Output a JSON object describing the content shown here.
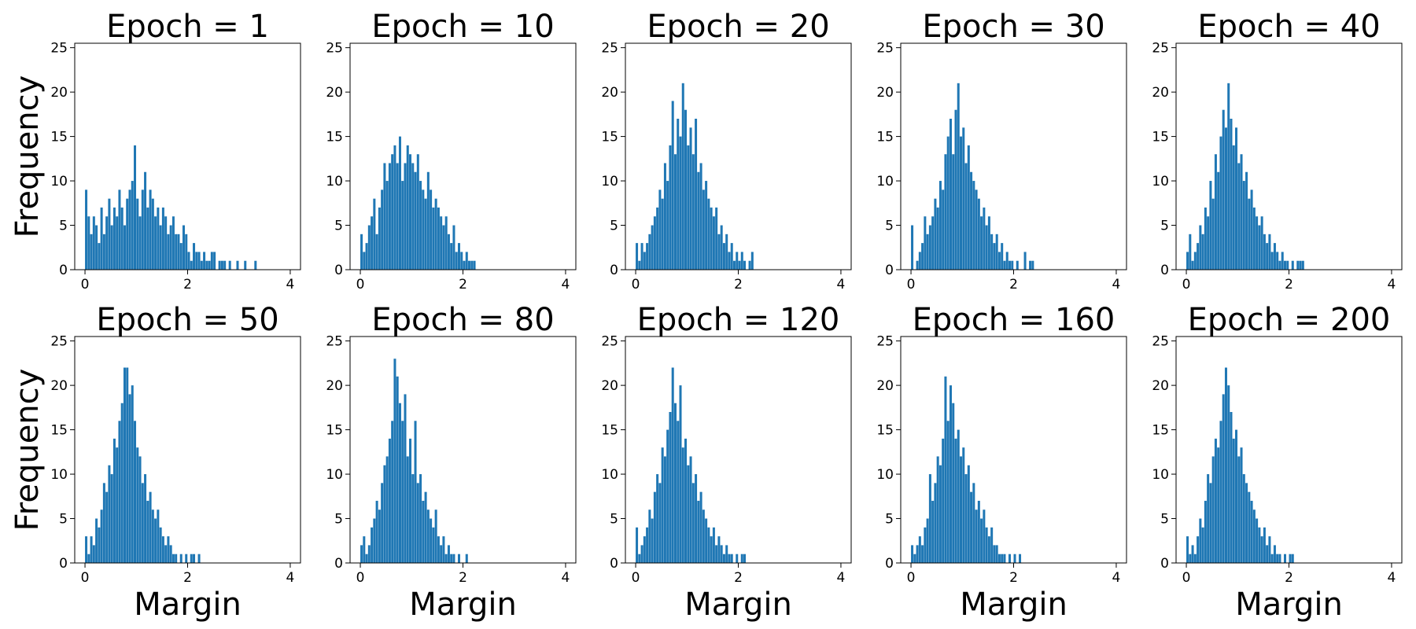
{
  "chart_data": [
    {
      "type": "bar",
      "title": "Epoch = 1",
      "xlabel": "",
      "ylabel": "Frequency",
      "xlim": [
        -0.2,
        4.2
      ],
      "ylim": [
        0,
        25.5
      ],
      "xticks": [
        0,
        2,
        4
      ],
      "yticks": [
        0,
        5,
        10,
        15,
        20,
        25
      ],
      "color": "#1f77b4",
      "x": [
        0.0,
        0.05,
        0.1,
        0.15,
        0.2,
        0.25,
        0.3,
        0.35,
        0.4,
        0.45,
        0.5,
        0.55,
        0.6,
        0.65,
        0.7,
        0.75,
        0.8,
        0.85,
        0.9,
        0.95,
        1.0,
        1.05,
        1.1,
        1.15,
        1.2,
        1.25,
        1.3,
        1.35,
        1.4,
        1.45,
        1.5,
        1.55,
        1.6,
        1.65,
        1.7,
        1.75,
        1.8,
        1.85,
        1.9,
        1.95,
        2.0,
        2.05,
        2.1,
        2.15,
        2.2,
        2.25,
        2.3,
        2.35,
        2.4,
        2.45,
        2.5,
        2.55,
        2.6,
        2.65,
        2.7,
        2.75,
        2.8,
        2.85,
        2.9,
        2.95,
        3.0,
        3.05,
        3.1,
        3.15,
        3.2,
        3.25,
        3.3,
        3.35
      ],
      "values": [
        9,
        6,
        4,
        6,
        5,
        3,
        7,
        4,
        6,
        8,
        5,
        7,
        6,
        9,
        7,
        5,
        8,
        9,
        10,
        14,
        8,
        6,
        9,
        11,
        7,
        9,
        8,
        6,
        7,
        5,
        7,
        6,
        4,
        5,
        6,
        4,
        4,
        3,
        5,
        4,
        2,
        1,
        3,
        2,
        2,
        1,
        2,
        1,
        1,
        2,
        2,
        0,
        1,
        1,
        1,
        0,
        1,
        0,
        0,
        1,
        0,
        0,
        1,
        0,
        0,
        0,
        1,
        0
      ]
    },
    {
      "type": "bar",
      "title": "Epoch = 10",
      "xlabel": "",
      "ylabel": "",
      "xlim": [
        -0.2,
        4.2
      ],
      "ylim": [
        0,
        25.5
      ],
      "xticks": [
        0,
        2,
        4
      ],
      "yticks": [
        0,
        5,
        10,
        15,
        20,
        25
      ],
      "color": "#1f77b4",
      "x": [
        0.0,
        0.05,
        0.1,
        0.15,
        0.2,
        0.25,
        0.3,
        0.35,
        0.4,
        0.45,
        0.5,
        0.55,
        0.6,
        0.65,
        0.7,
        0.75,
        0.8,
        0.85,
        0.9,
        0.95,
        1.0,
        1.05,
        1.1,
        1.15,
        1.2,
        1.25,
        1.3,
        1.35,
        1.4,
        1.45,
        1.5,
        1.55,
        1.6,
        1.65,
        1.7,
        1.75,
        1.8,
        1.85,
        1.9,
        1.95,
        2.0,
        2.05,
        2.1,
        2.15,
        2.2
      ],
      "values": [
        4,
        2,
        3,
        5,
        6,
        8,
        4,
        7,
        9,
        12,
        10,
        12,
        13,
        14,
        12,
        15,
        10,
        12,
        14,
        13,
        12,
        11,
        13,
        10,
        9,
        8,
        11,
        9,
        7,
        8,
        7,
        6,
        5,
        6,
        4,
        3,
        5,
        2,
        3,
        2,
        1,
        2,
        1,
        1,
        1
      ]
    },
    {
      "type": "bar",
      "title": "Epoch = 20",
      "xlabel": "",
      "ylabel": "",
      "xlim": [
        -0.2,
        4.2
      ],
      "ylim": [
        0,
        25.5
      ],
      "xticks": [
        0,
        2,
        4
      ],
      "yticks": [
        0,
        5,
        10,
        15,
        20,
        25
      ],
      "color": "#1f77b4",
      "x": [
        0.0,
        0.05,
        0.1,
        0.15,
        0.2,
        0.25,
        0.3,
        0.35,
        0.4,
        0.45,
        0.5,
        0.55,
        0.6,
        0.65,
        0.7,
        0.75,
        0.8,
        0.85,
        0.9,
        0.95,
        1.0,
        1.05,
        1.1,
        1.15,
        1.2,
        1.25,
        1.3,
        1.35,
        1.4,
        1.45,
        1.5,
        1.55,
        1.6,
        1.65,
        1.7,
        1.75,
        1.8,
        1.85,
        1.9,
        1.95,
        2.0,
        2.05,
        2.1,
        2.15,
        2.2,
        2.25
      ],
      "values": [
        3,
        1,
        3,
        2,
        3,
        4,
        5,
        6,
        7,
        9,
        8,
        12,
        10,
        14,
        19,
        13,
        17,
        15,
        21,
        18,
        14,
        16,
        13,
        17,
        11,
        12,
        9,
        10,
        8,
        7,
        6,
        7,
        4,
        5,
        3,
        4,
        2,
        3,
        1,
        2,
        1,
        2,
        1,
        0,
        1,
        2
      ]
    },
    {
      "type": "bar",
      "title": "Epoch = 30",
      "xlabel": "",
      "ylabel": "",
      "xlim": [
        -0.2,
        4.2
      ],
      "ylim": [
        0,
        25.5
      ],
      "xticks": [
        0,
        2,
        4
      ],
      "yticks": [
        0,
        5,
        10,
        15,
        20,
        25
      ],
      "color": "#1f77b4",
      "x": [
        0.0,
        0.05,
        0.1,
        0.15,
        0.2,
        0.25,
        0.3,
        0.35,
        0.4,
        0.45,
        0.5,
        0.55,
        0.6,
        0.65,
        0.7,
        0.75,
        0.8,
        0.85,
        0.9,
        0.95,
        1.0,
        1.05,
        1.1,
        1.15,
        1.2,
        1.25,
        1.3,
        1.35,
        1.4,
        1.45,
        1.5,
        1.55,
        1.6,
        1.65,
        1.7,
        1.75,
        1.8,
        1.85,
        1.9,
        1.95,
        2.0,
        2.05,
        2.1,
        2.15,
        2.2,
        2.25,
        2.3,
        2.35
      ],
      "values": [
        5,
        0,
        1,
        2,
        3,
        6,
        4,
        5,
        6,
        8,
        7,
        10,
        9,
        13,
        15,
        17,
        13,
        18,
        21,
        15,
        16,
        12,
        14,
        11,
        10,
        9,
        8,
        6,
        7,
        5,
        6,
        4,
        3,
        4,
        2,
        3,
        1,
        2,
        1,
        1,
        0,
        1,
        0,
        0,
        2,
        0,
        1,
        1
      ]
    },
    {
      "type": "bar",
      "title": "Epoch = 40",
      "xlabel": "",
      "ylabel": "",
      "xlim": [
        -0.2,
        4.2
      ],
      "ylim": [
        0,
        25.5
      ],
      "xticks": [
        0,
        2,
        4
      ],
      "yticks": [
        0,
        5,
        10,
        15,
        20,
        25
      ],
      "color": "#1f77b4",
      "x": [
        0.0,
        0.05,
        0.1,
        0.15,
        0.2,
        0.25,
        0.3,
        0.35,
        0.4,
        0.45,
        0.5,
        0.55,
        0.6,
        0.65,
        0.7,
        0.75,
        0.8,
        0.85,
        0.9,
        0.95,
        1.0,
        1.05,
        1.1,
        1.15,
        1.2,
        1.25,
        1.3,
        1.35,
        1.4,
        1.45,
        1.5,
        1.55,
        1.6,
        1.65,
        1.7,
        1.75,
        1.8,
        1.85,
        1.9,
        1.95,
        2.0,
        2.05,
        2.1,
        2.15,
        2.2,
        2.25
      ],
      "values": [
        2,
        4,
        1,
        2,
        3,
        5,
        4,
        7,
        6,
        10,
        8,
        13,
        11,
        15,
        18,
        16,
        21,
        17,
        14,
        16,
        12,
        13,
        10,
        11,
        8,
        9,
        7,
        6,
        5,
        6,
        4,
        3,
        4,
        2,
        3,
        2,
        1,
        2,
        1,
        1,
        0,
        1,
        0,
        1,
        1,
        1
      ]
    },
    {
      "type": "bar",
      "title": "Epoch = 50",
      "xlabel": "Margin",
      "ylabel": "Frequency",
      "xlim": [
        -0.2,
        4.2
      ],
      "ylim": [
        0,
        25.5
      ],
      "xticks": [
        0,
        2,
        4
      ],
      "yticks": [
        0,
        5,
        10,
        15,
        20,
        25
      ],
      "color": "#1f77b4",
      "x": [
        0.0,
        0.05,
        0.1,
        0.15,
        0.2,
        0.25,
        0.3,
        0.35,
        0.4,
        0.45,
        0.5,
        0.55,
        0.6,
        0.65,
        0.7,
        0.75,
        0.8,
        0.85,
        0.9,
        0.95,
        1.0,
        1.05,
        1.1,
        1.15,
        1.2,
        1.25,
        1.3,
        1.35,
        1.4,
        1.45,
        1.5,
        1.55,
        1.6,
        1.65,
        1.7,
        1.75,
        1.8,
        1.85,
        1.9,
        1.95,
        2.0,
        2.05,
        2.1,
        2.15,
        2.2
      ],
      "values": [
        3,
        1,
        3,
        2,
        5,
        4,
        6,
        9,
        8,
        11,
        10,
        14,
        13,
        16,
        18,
        22,
        22,
        19,
        20,
        16,
        13,
        12,
        9,
        10,
        7,
        8,
        6,
        5,
        6,
        4,
        3,
        2,
        3,
        2,
        1,
        1,
        0,
        1,
        0,
        1,
        0,
        1,
        1,
        0,
        1
      ]
    },
    {
      "type": "bar",
      "title": "Epoch = 80",
      "xlabel": "Margin",
      "ylabel": "",
      "xlim": [
        -0.2,
        4.2
      ],
      "ylim": [
        0,
        25.5
      ],
      "xticks": [
        0,
        2,
        4
      ],
      "yticks": [
        0,
        5,
        10,
        15,
        20,
        25
      ],
      "color": "#1f77b4",
      "x": [
        0.0,
        0.05,
        0.1,
        0.15,
        0.2,
        0.25,
        0.3,
        0.35,
        0.4,
        0.45,
        0.5,
        0.55,
        0.6,
        0.65,
        0.7,
        0.75,
        0.8,
        0.85,
        0.9,
        0.95,
        1.0,
        1.05,
        1.1,
        1.15,
        1.2,
        1.25,
        1.3,
        1.35,
        1.4,
        1.45,
        1.5,
        1.55,
        1.6,
        1.65,
        1.7,
        1.75,
        1.8,
        1.85,
        1.9,
        1.95,
        2.0,
        2.05
      ],
      "values": [
        2,
        3,
        1,
        2,
        4,
        5,
        7,
        6,
        9,
        11,
        12,
        14,
        16,
        23,
        21,
        18,
        16,
        19,
        12,
        14,
        10,
        16,
        9,
        10,
        7,
        8,
        6,
        5,
        4,
        6,
        3,
        2,
        3,
        1,
        2,
        1,
        1,
        0,
        1,
        0,
        0,
        1
      ]
    },
    {
      "type": "bar",
      "title": "Epoch = 120",
      "xlabel": "Margin",
      "ylabel": "",
      "xlim": [
        -0.2,
        4.2
      ],
      "ylim": [
        0,
        25.5
      ],
      "xticks": [
        0,
        2,
        4
      ],
      "yticks": [
        0,
        5,
        10,
        15,
        20,
        25
      ],
      "color": "#1f77b4",
      "x": [
        0.0,
        0.05,
        0.1,
        0.15,
        0.2,
        0.25,
        0.3,
        0.35,
        0.4,
        0.45,
        0.5,
        0.55,
        0.6,
        0.65,
        0.7,
        0.75,
        0.8,
        0.85,
        0.9,
        0.95,
        1.0,
        1.05,
        1.1,
        1.15,
        1.2,
        1.25,
        1.3,
        1.35,
        1.4,
        1.45,
        1.5,
        1.55,
        1.6,
        1.65,
        1.7,
        1.75,
        1.8,
        1.85,
        1.9,
        1.95,
        2.0,
        2.05,
        2.1
      ],
      "values": [
        4,
        1,
        2,
        3,
        4,
        6,
        5,
        8,
        10,
        9,
        13,
        12,
        15,
        17,
        22,
        18,
        16,
        20,
        13,
        14,
        11,
        12,
        9,
        10,
        7,
        8,
        6,
        5,
        4,
        3,
        4,
        2,
        3,
        2,
        1,
        2,
        1,
        1,
        0,
        1,
        0,
        1,
        1
      ]
    },
    {
      "type": "bar",
      "title": "Epoch = 160",
      "xlabel": "Margin",
      "ylabel": "",
      "xlim": [
        -0.2,
        4.2
      ],
      "ylim": [
        0,
        25.5
      ],
      "xticks": [
        0,
        2,
        4
      ],
      "yticks": [
        0,
        5,
        10,
        15,
        20,
        25
      ],
      "color": "#1f77b4",
      "x": [
        0.0,
        0.05,
        0.1,
        0.15,
        0.2,
        0.25,
        0.3,
        0.35,
        0.4,
        0.45,
        0.5,
        0.55,
        0.6,
        0.65,
        0.7,
        0.75,
        0.8,
        0.85,
        0.9,
        0.95,
        1.0,
        1.05,
        1.1,
        1.15,
        1.2,
        1.25,
        1.3,
        1.35,
        1.4,
        1.45,
        1.5,
        1.55,
        1.6,
        1.65,
        1.7,
        1.75,
        1.8,
        1.85,
        1.9,
        1.95,
        2.0,
        2.05,
        2.1
      ],
      "values": [
        2,
        1,
        2,
        3,
        2,
        4,
        5,
        10,
        7,
        9,
        12,
        11,
        14,
        21,
        16,
        20,
        18,
        14,
        15,
        12,
        13,
        10,
        11,
        8,
        9,
        6,
        7,
        5,
        6,
        4,
        3,
        4,
        2,
        2,
        1,
        1,
        1,
        0,
        1,
        0,
        1,
        0,
        1
      ]
    },
    {
      "type": "bar",
      "title": "Epoch = 200",
      "xlabel": "Margin",
      "ylabel": "",
      "xlim": [
        -0.2,
        4.2
      ],
      "ylim": [
        0,
        25.5
      ],
      "xticks": [
        0,
        2,
        4
      ],
      "yticks": [
        0,
        5,
        10,
        15,
        20,
        25
      ],
      "color": "#1f77b4",
      "x": [
        0.0,
        0.05,
        0.1,
        0.15,
        0.2,
        0.25,
        0.3,
        0.35,
        0.4,
        0.45,
        0.5,
        0.55,
        0.6,
        0.65,
        0.7,
        0.75,
        0.8,
        0.85,
        0.9,
        0.95,
        1.0,
        1.05,
        1.1,
        1.15,
        1.2,
        1.25,
        1.3,
        1.35,
        1.4,
        1.45,
        1.5,
        1.55,
        1.6,
        1.65,
        1.7,
        1.75,
        1.8,
        1.85,
        1.9,
        1.95,
        2.0,
        2.05
      ],
      "values": [
        3,
        1,
        2,
        1,
        3,
        5,
        4,
        7,
        10,
        9,
        12,
        14,
        13,
        16,
        19,
        22,
        20,
        17,
        14,
        15,
        12,
        13,
        10,
        9,
        8,
        7,
        6,
        5,
        4,
        3,
        4,
        2,
        3,
        1,
        2,
        1,
        1,
        0,
        1,
        0,
        1,
        1
      ]
    }
  ]
}
